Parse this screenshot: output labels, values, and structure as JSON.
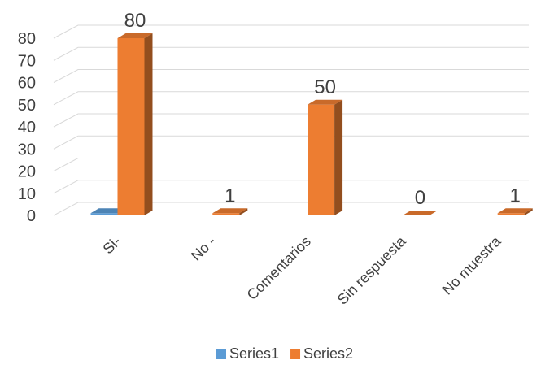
{
  "chart_data": {
    "type": "bar",
    "style": "3d-clustered-column",
    "categories": [
      "Si-",
      "No -",
      "Comentarios",
      "Sin respuesta",
      "No muestra"
    ],
    "series": [
      {
        "name": "Series1",
        "values": [
          1,
          0,
          0,
          0,
          0
        ],
        "color": "#5b9bd5"
      },
      {
        "name": "Series2",
        "values": [
          80,
          1,
          50,
          0,
          1
        ],
        "color": "#ed7d31"
      }
    ],
    "data_labels": {
      "series": "Series2",
      "values": [
        "80",
        "1",
        "50",
        "0",
        "1"
      ]
    },
    "yticks": [
      "0",
      "10",
      "20",
      "30",
      "40",
      "50",
      "60",
      "70",
      "80"
    ],
    "ylim": [
      0,
      80
    ],
    "grid": true,
    "legend": {
      "position": "bottom",
      "entries": [
        "Series1",
        "Series2"
      ]
    },
    "title": "",
    "xlabel": "",
    "ylabel": ""
  }
}
